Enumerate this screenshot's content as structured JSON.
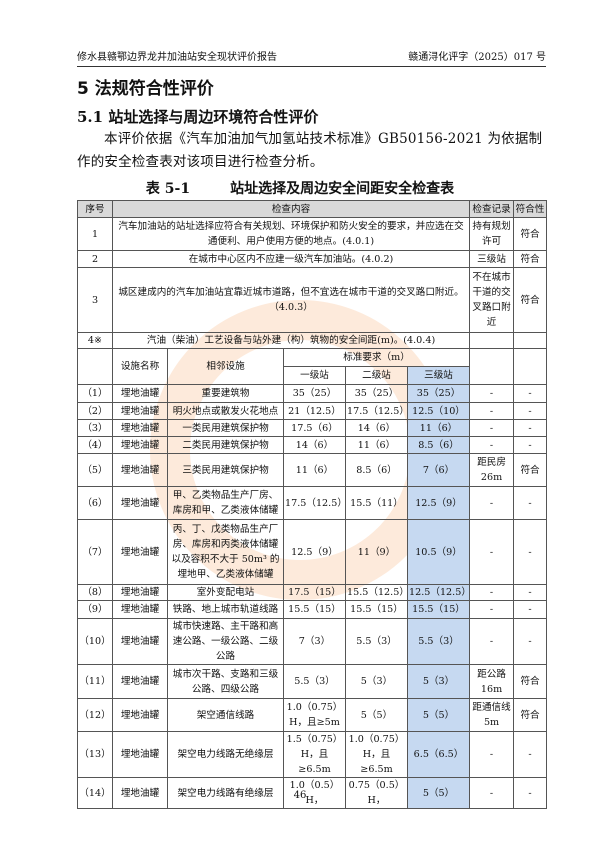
{
  "header": {
    "left": "修水县赣鄂边界龙井加油站安全现状评价报告",
    "right": "赣通浔化评字（2025）017 号"
  },
  "section_title": "5 法规符合性评价",
  "subsection_title": "5.1 站址选择与周边环境符合性评价",
  "paragraph": "本评价依据《汽车加油加气加氢站技术标准》GB50156-2021 为依据制作的安全检查表对该项目进行检查分析。",
  "caption": {
    "number": "表 5-1",
    "title": "站址选择及周边安全间距安全检查表"
  },
  "table": {
    "head": [
      "序号",
      "检查内容",
      "检查记录",
      "符合性"
    ],
    "general_rows": [
      {
        "no": "1",
        "content": "汽车加油站的站址选择应符合有关规划、环境保护和防火安全的要求，并应选在交通便利、用户使用方便的地点。(4.0.1)",
        "record": "持有规划许可",
        "result": "符合"
      },
      {
        "no": "2",
        "content": "在城市中心区内不应建一级汽车加油站。(4.0.2)",
        "record": "三级站",
        "result": "符合"
      },
      {
        "no": "3",
        "content": "城区建成内的汽车加油站宜靠近城市道路，但不宜选在城市干道的交叉路口附近。（4.0.3）",
        "record": "不在城市干道的交叉路口附近",
        "result": "符合"
      },
      {
        "no": "4※",
        "content": "汽油（柴油）工艺设备与站外建（构）筑物的安全间距(m)。(4.0.4)",
        "record": "",
        "result": ""
      }
    ],
    "sub_head": {
      "facility": "设施名称",
      "adjacent": "相邻设施",
      "standard": "标准要求（m）",
      "grades": [
        "一级站",
        "二级站",
        "三级站"
      ]
    },
    "distance_rows": [
      {
        "no": "（1）",
        "facility": "埋地油罐",
        "adjacent": "重要建筑物",
        "g1": "35（25）",
        "g2": "35（25）",
        "g3": "35（25）",
        "record": "-",
        "result": "-"
      },
      {
        "no": "（2）",
        "facility": "埋地油罐",
        "adjacent": "明火地点或散发火花地点",
        "g1": "21（12.5）",
        "g2": "17.5（12.5）",
        "g3": "12.5（10）",
        "record": "-",
        "result": "-"
      },
      {
        "no": "（3）",
        "facility": "埋地油罐",
        "adjacent": "一类民用建筑保护物",
        "g1": "17.5（6）",
        "g2": "14（6）",
        "g3": "11（6）",
        "record": "-",
        "result": "-"
      },
      {
        "no": "（4）",
        "facility": "埋地油罐",
        "adjacent": "二类民用建筑保护物",
        "g1": "14（6）",
        "g2": "11（6）",
        "g3": "8.5（6）",
        "record": "-",
        "result": "-"
      },
      {
        "no": "（5）",
        "facility": "埋地油罐",
        "adjacent": "三类民用建筑保护物",
        "g1": "11（6）",
        "g2": "8.5（6）",
        "g3": "7（6）",
        "record": "距民房26m",
        "result": "符合"
      },
      {
        "no": "（6）",
        "facility": "埋地油罐",
        "adjacent": "甲、乙类物品生产厂房、库房和甲、乙类液体储罐",
        "g1": "17.5（12.5）",
        "g2": "15.5（11）",
        "g3": "12.5（9）",
        "record": "-",
        "result": "-"
      },
      {
        "no": "（7）",
        "facility": "埋地油罐",
        "adjacent": "丙、丁、戊类物品生产厂房、库房和丙类液体储罐以及容积不大于 50m³ 的埋地甲、乙类液体储罐",
        "g1": "12.5（9）",
        "g2": "11（9）",
        "g3": "10.5（9）",
        "record": "-",
        "result": "-"
      },
      {
        "no": "（8）",
        "facility": "埋地油罐",
        "adjacent": "室外变配电站",
        "g1": "17.5（15）",
        "g2": "15.5（12.5）",
        "g3": "12.5（12.5）",
        "record": "-",
        "result": "-"
      },
      {
        "no": "（9）",
        "facility": "埋地油罐",
        "adjacent": "铁路、地上城市轨道线路",
        "g1": "15.5（15）",
        "g2": "15.5（15）",
        "g3": "15.5（15）",
        "record": "-",
        "result": "-"
      },
      {
        "no": "（10）",
        "facility": "埋地油罐",
        "adjacent": "城市快速路、主干路和高速公路、一级公路、二级公路",
        "g1": "7（3）",
        "g2": "5.5（3）",
        "g3": "5.5（3）",
        "record": "-",
        "result": "-"
      },
      {
        "no": "（11）",
        "facility": "埋地油罐",
        "adjacent": "城市次干路、支路和三级公路、四级公路",
        "g1": "5.5（3）",
        "g2": "5（3）",
        "g3": "5（3）",
        "record": "距公路16m",
        "result": "符合"
      },
      {
        "no": "（12）",
        "facility": "埋地油罐",
        "adjacent": "架空通信线路",
        "g1": "1.0（0.75）H，且≥5m",
        "g2": "5（5）",
        "g3": "5（5）",
        "record": "距通信线5m",
        "result": "符合"
      },
      {
        "no": "（13）",
        "facility": "埋地油罐",
        "adjacent": "架空电力线路无绝缘层",
        "g1": "1.5（0.75）H，且≥6.5m",
        "g2": "1.0（0.75）H，且≥6.5m",
        "g3": "6.5（6.5）",
        "record": "-",
        "result": "-"
      },
      {
        "no": "（14）",
        "facility": "埋地油罐",
        "adjacent": "架空电力线路有绝缘层",
        "g1": "1.0（0.5）H，",
        "g2": "0.75（0.5）H，",
        "g3": "5（5）",
        "record": "-",
        "result": "-"
      }
    ]
  },
  "page_number": "46"
}
